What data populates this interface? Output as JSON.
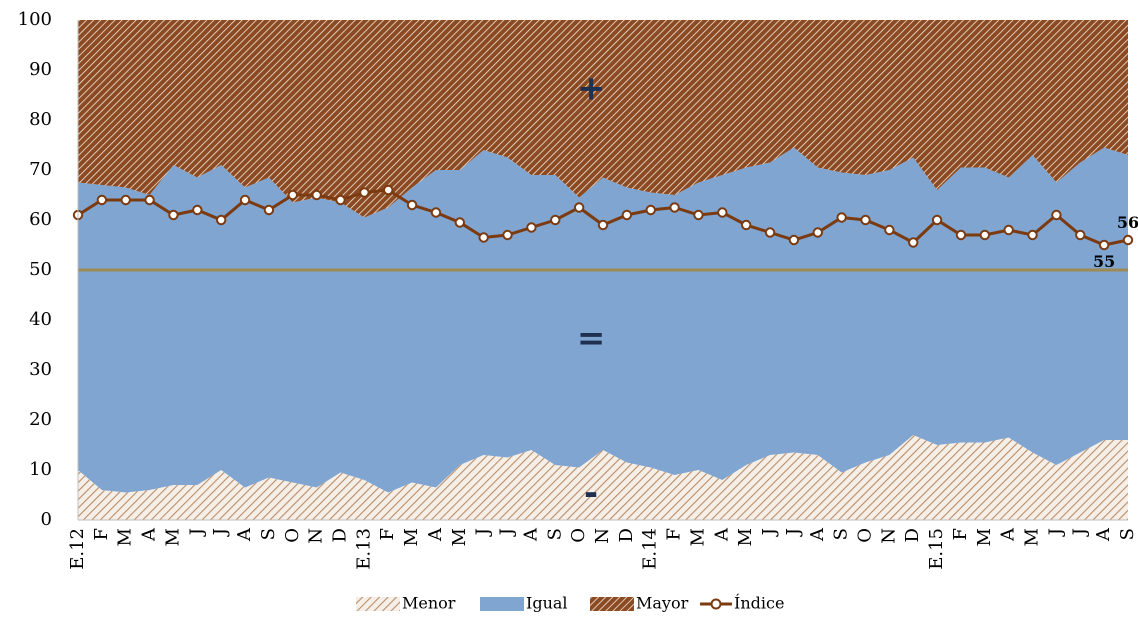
{
  "chart_data": {
    "type": "area",
    "categories": [
      "E.12",
      "F",
      "M",
      "A",
      "M",
      "J",
      "J",
      "A",
      "S",
      "O",
      "N",
      "D",
      "E.13",
      "F",
      "M",
      "A",
      "M",
      "J",
      "J",
      "A",
      "S",
      "O",
      "N",
      "D",
      "E.14",
      "F",
      "M",
      "A",
      "M",
      "J",
      "J",
      "A",
      "S",
      "O",
      "N",
      "D",
      "E.15",
      "F",
      "M",
      "A",
      "M",
      "J",
      "J",
      "A",
      "S"
    ],
    "ylim": [
      0,
      100
    ],
    "yticks": [
      0,
      10,
      20,
      30,
      40,
      50,
      60,
      70,
      80,
      90,
      100
    ],
    "grid": false,
    "legend_position": "bottom",
    "series": [
      {
        "name": "Menor",
        "kind": "area",
        "values": [
          10,
          6,
          5.5,
          6,
          7,
          7,
          10,
          6.5,
          8.5,
          7.5,
          6.5,
          9.5,
          8,
          5.5,
          7.5,
          6.5,
          11,
          13,
          12.5,
          14,
          11,
          10.5,
          14,
          11.5,
          10.5,
          9,
          10,
          8,
          11,
          13,
          13.5,
          13,
          9.5,
          11.5,
          13,
          17,
          15,
          15.5,
          15.5,
          16.5,
          13.5,
          11,
          13.5,
          16,
          16
        ]
      },
      {
        "name": "Igual",
        "kind": "area",
        "values": [
          57.5,
          61,
          61,
          59,
          64,
          61.5,
          61,
          60,
          60,
          56,
          58,
          54,
          52.5,
          57,
          59,
          63.5,
          59,
          61,
          60,
          55,
          58,
          54,
          54.5,
          55,
          55,
          56,
          57.5,
          61,
          59.5,
          58.5,
          61,
          57.5,
          60,
          57.5,
          57,
          55.5,
          51,
          55,
          55,
          52,
          59.5,
          56.5,
          58,
          58.5,
          57
        ]
      },
      {
        "name": "Mayor",
        "kind": "area",
        "values": [
          32.5,
          33,
          33.5,
          35,
          29,
          31.5,
          29,
          33.5,
          31.5,
          36.5,
          35.5,
          36.5,
          39.5,
          37.5,
          33.5,
          30,
          30,
          26,
          27.5,
          31,
          31,
          35.5,
          31.5,
          33.5,
          34.5,
          35,
          32.5,
          31,
          29.5,
          28.5,
          25.5,
          29.5,
          30.5,
          31,
          30,
          27.5,
          34,
          29.5,
          29.5,
          31.5,
          27,
          32.5,
          28.5,
          25.5,
          27
        ]
      },
      {
        "name": "Índice",
        "kind": "line",
        "values": [
          61,
          64,
          64,
          64,
          61,
          62,
          60,
          64,
          62,
          65,
          65,
          64,
          65.5,
          66,
          63,
          61.5,
          59.5,
          56.5,
          57,
          58.5,
          60,
          62.5,
          59,
          61,
          62,
          62.5,
          61,
          61.5,
          59,
          57.5,
          56,
          57.5,
          60.5,
          60,
          58,
          55.5,
          60,
          57,
          57,
          58,
          57,
          61,
          57,
          55,
          56
        ]
      }
    ],
    "reference_line": 50,
    "annotations": [
      {
        "text": "+",
        "x_index": 21.5,
        "y": 86
      },
      {
        "text": "=",
        "x_index": 21.5,
        "y": 36
      },
      {
        "text": "-",
        "x_index": 21.5,
        "y": 5
      }
    ],
    "data_labels": [
      {
        "index": 43,
        "text": "55"
      },
      {
        "index": 44,
        "text": "56"
      }
    ],
    "colors": {
      "menor_hatch": "#c9a98a",
      "igual": "#7fa5d0",
      "mayor_bg": "#8b4a22",
      "mayor_stripe": "#f2e8dc",
      "indice_line": "#7b3a10",
      "reference_line": "#9d8a55",
      "axis": "#bfbfbf"
    }
  }
}
